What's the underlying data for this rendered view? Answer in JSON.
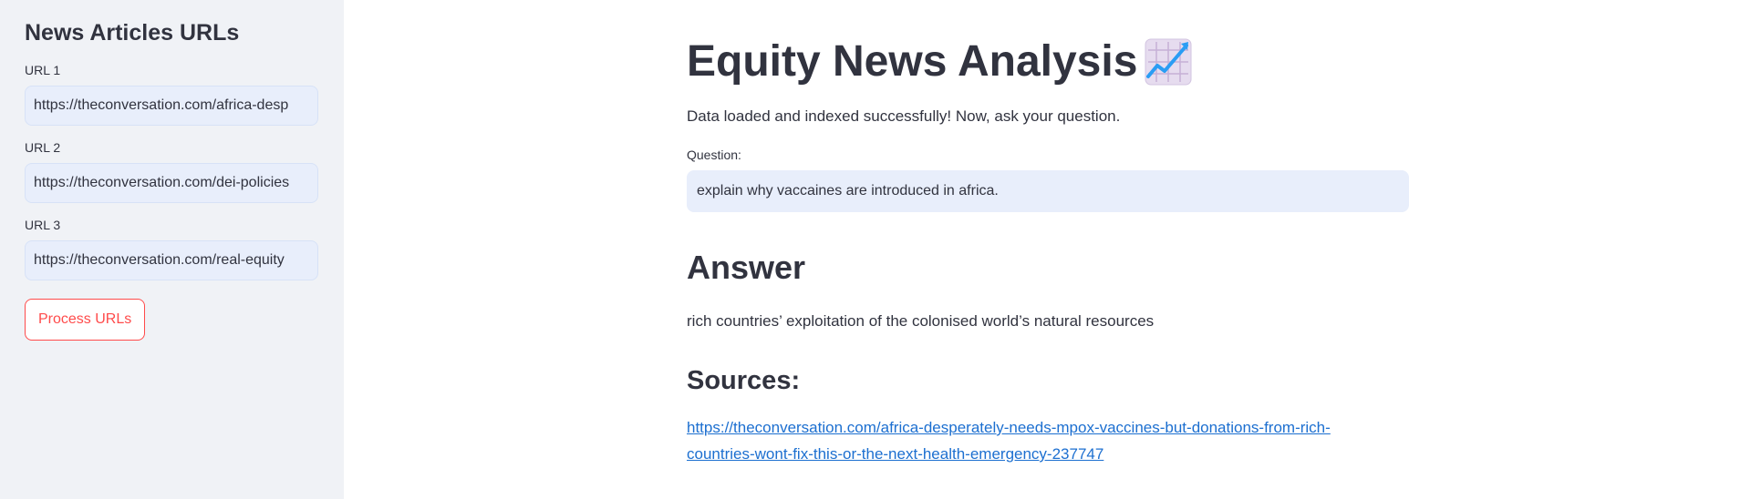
{
  "sidebar": {
    "title": "News Articles URLs",
    "urls": [
      {
        "label": "URL 1",
        "value": "https://theconversation.com/africa-desp"
      },
      {
        "label": "URL 2",
        "value": "https://theconversation.com/dei-policies"
      },
      {
        "label": "URL 3",
        "value": "https://theconversation.com/real-equity"
      }
    ],
    "process_button": "Process URLs"
  },
  "main": {
    "title": "Equity News Analysis",
    "title_icon": "chart-increasing-icon",
    "status": "Data loaded and indexed successfully! Now, ask your question.",
    "question_label": "Question:",
    "question_value": "explain why vaccaines are introduced in africa.",
    "answer_heading": "Answer",
    "answer_text": "rich countries’ exploitation of the colonised world’s natural resources",
    "sources_heading": "Sources:",
    "source_link": "https://theconversation.com/africa-desperately-needs-mpox-vaccines-but-donations-from-rich-countries-wont-fix-this-or-the-next-health-emergency-237747"
  },
  "colors": {
    "sidebar_bg": "#f0f2f6",
    "input_bg": "#e8eefb",
    "accent": "#ff4b4b",
    "link": "#1c6fd0",
    "text": "#31333f"
  }
}
